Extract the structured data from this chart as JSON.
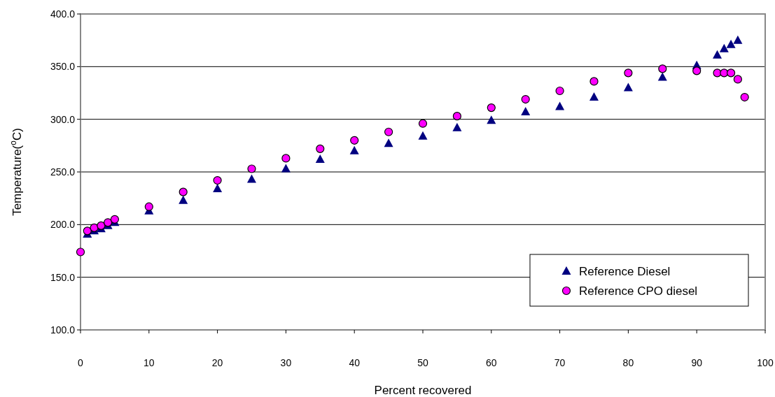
{
  "chart_data": {
    "type": "scatter",
    "xlabel": "Percent recovered",
    "ylabel": "Temperature($^{o}$C)",
    "xlim": [
      0,
      100
    ],
    "xticks": [
      0,
      10,
      20,
      30,
      40,
      50,
      60,
      70,
      80,
      90,
      100
    ],
    "ylim": [
      100,
      400
    ],
    "yticks": [
      {
        "value": 100,
        "label": "100.0"
      },
      {
        "value": 150,
        "label": "150.0"
      },
      {
        "value": 200,
        "label": "200.0"
      },
      {
        "value": 250,
        "label": "250.0"
      },
      {
        "value": 300,
        "label": "300.0"
      },
      {
        "value": 350,
        "label": "350.0"
      },
      {
        "value": 400,
        "label": "400.0"
      }
    ],
    "grid": "y",
    "legend": "bottom right",
    "series": [
      {
        "name": "Reference Diesel",
        "color": "#000080",
        "marker": "triangle",
        "x": [
          1,
          2,
          3,
          4,
          5,
          10,
          15,
          20,
          25,
          30,
          35,
          40,
          45,
          50,
          55,
          60,
          65,
          70,
          75,
          80,
          85,
          90,
          93,
          94,
          95,
          96
        ],
        "values": [
          191,
          194,
          196,
          199,
          202,
          213,
          223,
          234,
          243,
          253,
          262,
          270,
          277,
          284,
          292,
          299,
          307,
          312,
          321,
          330,
          340,
          351,
          361,
          367,
          371,
          375
        ]
      },
      {
        "name": "Reference CPO diesel",
        "color": "#ff00ff",
        "marker": "circle",
        "x": [
          0,
          1,
          2,
          3,
          4,
          5,
          10,
          15,
          20,
          25,
          30,
          35,
          40,
          45,
          50,
          55,
          60,
          65,
          70,
          75,
          80,
          85,
          90,
          93,
          94,
          95,
          96,
          97
        ],
        "values": [
          174,
          194,
          197,
          199,
          202,
          205,
          217,
          231,
          242,
          253,
          263,
          272,
          280,
          288,
          296,
          303,
          311,
          319,
          327,
          336,
          344,
          348,
          346,
          344,
          344,
          344,
          338,
          321
        ]
      }
    ]
  }
}
